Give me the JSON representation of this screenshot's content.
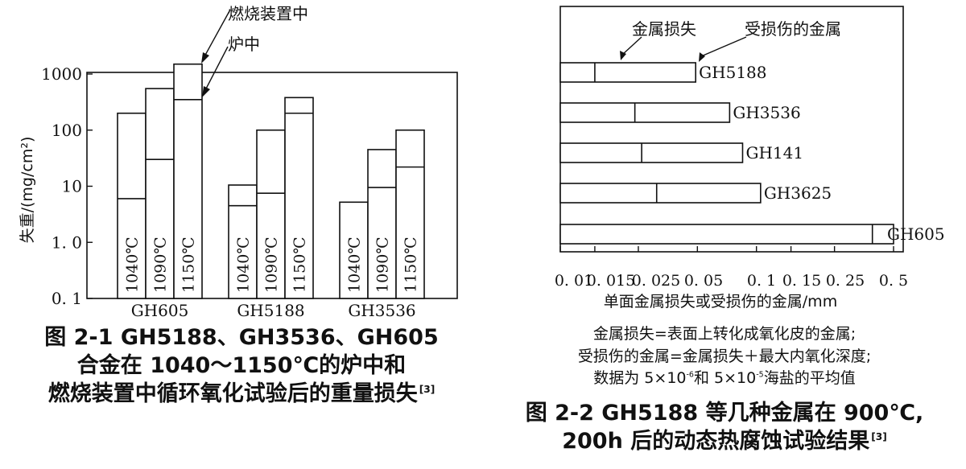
{
  "chart_data": [
    {
      "type": "bar",
      "scale": "log",
      "ylabel": "失重/(mg/cm²)",
      "ylim": [
        0.1,
        1000
      ],
      "yticks": [
        "0.1",
        "1.0",
        "10",
        "100",
        "1000"
      ],
      "groups": [
        "GH605",
        "GH5188",
        "GH3536"
      ],
      "bar_labels": [
        "1040℃",
        "1090℃",
        "1150℃"
      ],
      "series": [
        {
          "name": "炉中",
          "values": [
            [
              6,
              30,
              350
            ],
            [
              4.5,
              7.5,
              200
            ],
            [
              5.2,
              9.5,
              22
            ]
          ]
        },
        {
          "name": "燃烧装置中",
          "values": [
            [
              200,
              550,
              1500
            ],
            [
              10.5,
              100,
              380
            ],
            [
              5.2,
              45,
              100
            ]
          ]
        }
      ],
      "annotations": [
        "燃烧装置中",
        "炉中"
      ]
    },
    {
      "type": "bar",
      "orientation": "horizontal",
      "scale": "log",
      "xlabel": "单面金属损失或受损伤的金属/mm",
      "xlim": [
        0.01,
        0.5
      ],
      "xticks": [
        "0.01",
        "0.015",
        "0.025",
        "0.05",
        "0.1",
        "0.15",
        "0.25",
        "0.5"
      ],
      "xtick_text": [
        "0. 01",
        "0. 015",
        "0. 025",
        "0. 05",
        "0. 1",
        "0. 15",
        "0. 25",
        "0. 5"
      ],
      "categories": [
        "GH5188",
        "GH3536",
        "GH141",
        "GH3625",
        "GH605"
      ],
      "series": [
        {
          "name": "金属损失",
          "values": [
            0.015,
            0.024,
            0.026,
            0.031,
            0.39
          ]
        },
        {
          "name": "受损伤的金属",
          "values": [
            0.049,
            0.073,
            0.085,
            0.105,
            0.5
          ]
        }
      ],
      "annotations": [
        "金属损失",
        "受损伤的金属"
      ]
    }
  ],
  "captions": {
    "fig1_line1": "图 2-1 GH5188、GH3536、GH605",
    "fig1_line2": "合金在 1040～1150℃的炉中和",
    "fig1_line3": "燃烧装置中循环氧化试验后的重量损失",
    "fig1_ref": "[3]",
    "fig2_note1": "金属损失=表面上转化成氧化皮的金属;",
    "fig2_note2": "受损伤的金属=金属损失＋最大内氧化深度;",
    "fig2_note3_a": "数据为 5×10",
    "fig2_note3_exp1": "-6",
    "fig2_note3_b": "和 5×10",
    "fig2_note3_exp2": "-5",
    "fig2_note3_c": "海盐的平均值",
    "fig2_line1": "图 2-2 GH5188 等几种金属在 900℃,",
    "fig2_line2": "200h 后的动态热腐蚀试验结果",
    "fig2_ref": "[3]"
  }
}
